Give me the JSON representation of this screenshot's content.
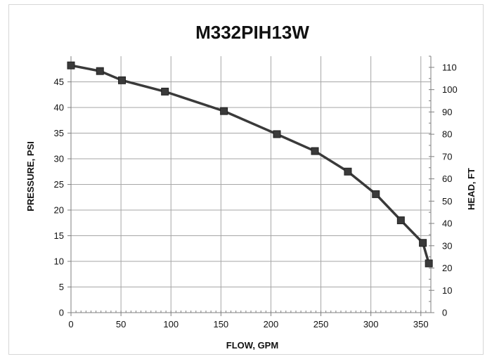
{
  "chart_data": {
    "type": "line",
    "title": "M332PIH13W",
    "xlabel": "FLOW, GPM",
    "ylabel": "PRESSURE, PSI",
    "y2label": "HEAD, FT",
    "xlim": [
      0,
      360
    ],
    "ylim": [
      0,
      50
    ],
    "y2lim": [
      0,
      115
    ],
    "x_ticks": [
      0,
      50,
      100,
      150,
      200,
      250,
      300,
      350
    ],
    "y_ticks": [
      0,
      5,
      10,
      15,
      20,
      25,
      30,
      35,
      40,
      45
    ],
    "y2_ticks": [
      0,
      10,
      20,
      30,
      40,
      50,
      60,
      70,
      80,
      90,
      100,
      110
    ],
    "grid": true,
    "series": [
      {
        "x": [
          0,
          29,
          51,
          94,
          153,
          206,
          244,
          277,
          305,
          330,
          352,
          358
        ],
        "values": [
          48.2,
          47.1,
          45.3,
          43.1,
          39.3,
          34.8,
          31.5,
          27.5,
          23.1,
          18.0,
          13.6,
          9.6
        ]
      }
    ],
    "colors": {
      "line": "#3a3a3a",
      "marker": "#3a3a3a",
      "grid": "#a6a6a6",
      "axis": "#7f7f7f"
    }
  }
}
